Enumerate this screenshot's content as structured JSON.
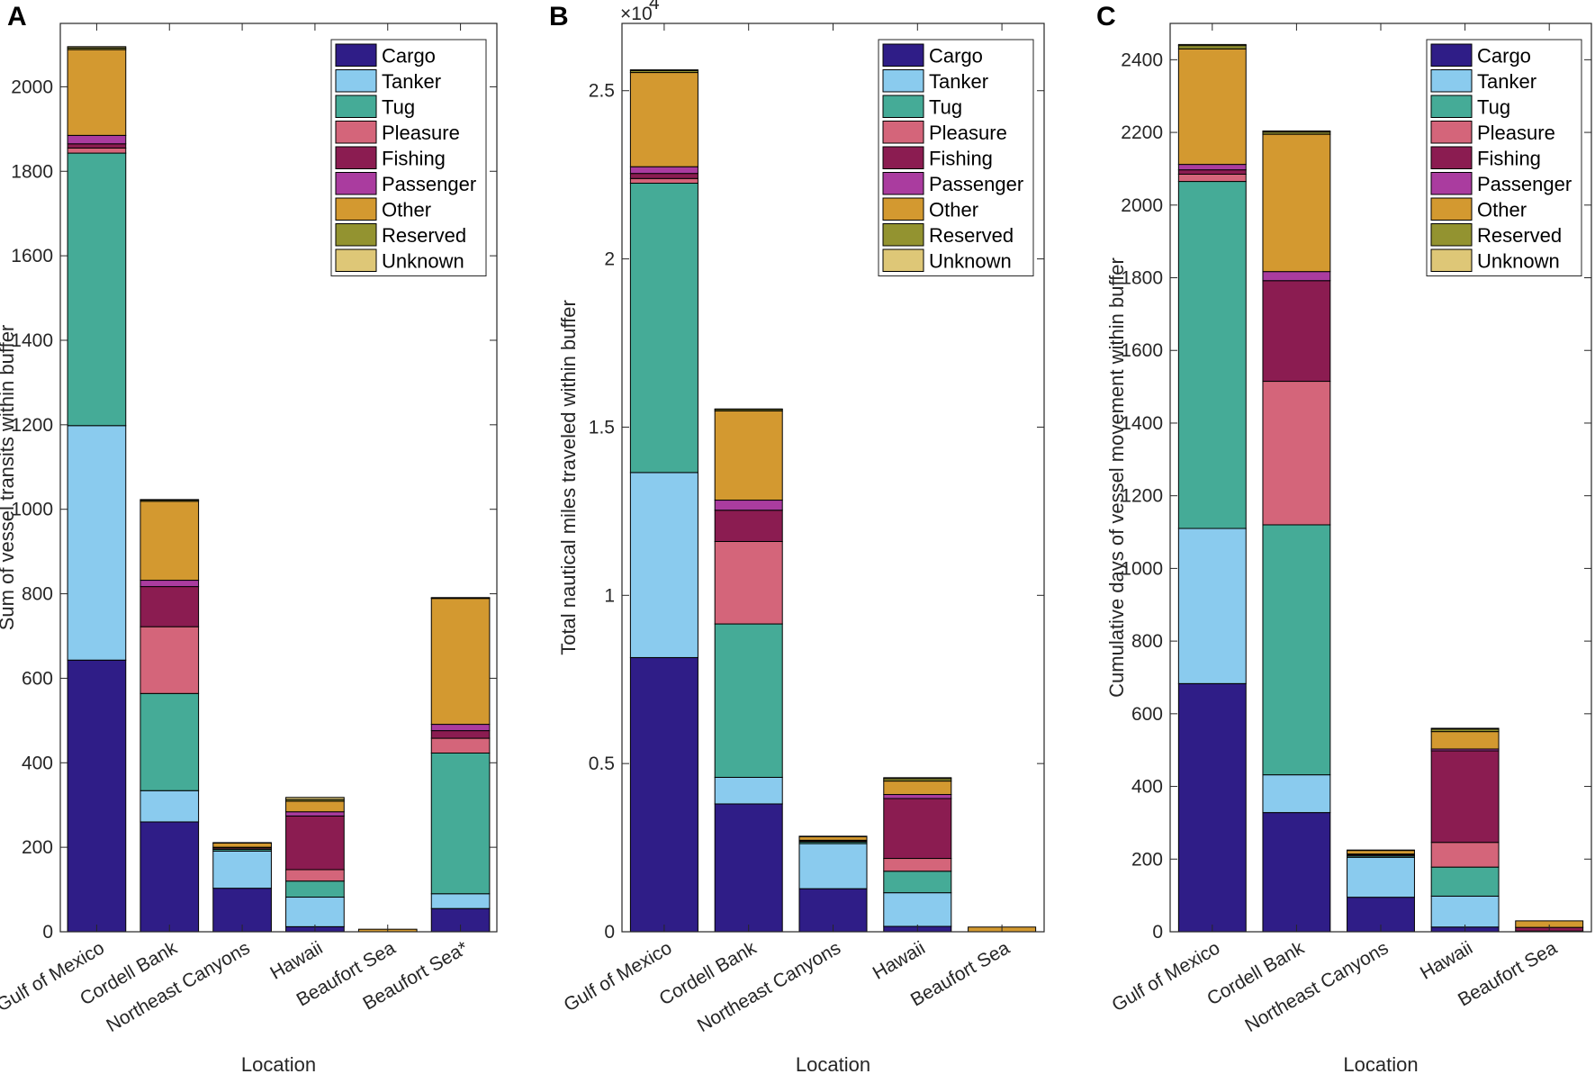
{
  "series_names": [
    "Cargo",
    "Tanker",
    "Tug",
    "Pleasure",
    "Fishing",
    "Passenger",
    "Other",
    "Reserved",
    "Unknown"
  ],
  "series_colors": [
    "#2f1d87",
    "#8acbee",
    "#45ab97",
    "#d4657a",
    "#8b1c51",
    "#aa3c9f",
    "#d39930",
    "#939330",
    "#dec777"
  ],
  "chart_data": [
    {
      "type": "bar",
      "stacked": true,
      "panel_label": "A",
      "title": "",
      "xlabel": "Location",
      "ylabel": "Sum of vessel transits within buffer",
      "ylim": [
        0,
        2150
      ],
      "yticks": [
        0,
        200,
        400,
        600,
        800,
        1000,
        1200,
        1400,
        1600,
        1800,
        2000
      ],
      "ytick_labels": [
        "0",
        "200",
        "400",
        "600",
        "800",
        "1000",
        "1200",
        "1400",
        "1600",
        "1800",
        "2000"
      ],
      "exponent_label": "",
      "categories": [
        "Gulf of Mexico",
        "Cordell Bank",
        "Northeast Canyons",
        "Hawaii",
        "Beaufort Sea",
        "Beaufort Sea*"
      ],
      "legend_position": "top-right",
      "series": [
        {
          "name": "Cargo",
          "values": [
            643,
            260,
            103,
            12,
            0,
            55
          ]
        },
        {
          "name": "Tanker",
          "values": [
            555,
            74,
            88,
            70,
            0,
            35
          ]
        },
        {
          "name": "Tug",
          "values": [
            645,
            230,
            4,
            38,
            0,
            333
          ]
        },
        {
          "name": "Pleasure",
          "values": [
            12,
            158,
            3,
            27,
            0,
            35
          ]
        },
        {
          "name": "Fishing",
          "values": [
            10,
            95,
            2,
            127,
            0,
            18
          ]
        },
        {
          "name": "Passenger",
          "values": [
            20,
            15,
            0,
            10,
            0,
            15
          ]
        },
        {
          "name": "Other",
          "values": [
            203,
            187,
            10,
            25,
            6,
            298
          ]
        },
        {
          "name": "Reserved",
          "values": [
            4,
            3,
            1,
            4,
            0,
            1
          ]
        },
        {
          "name": "Unknown",
          "values": [
            3,
            1,
            0,
            5,
            0,
            1
          ]
        }
      ]
    },
    {
      "type": "bar",
      "stacked": true,
      "panel_label": "B",
      "title": "",
      "xlabel": "Location",
      "ylabel": "Total nautical miles traveled within buffer",
      "ylim": [
        0,
        27000
      ],
      "yticks": [
        0,
        5000,
        10000,
        15000,
        20000,
        25000
      ],
      "ytick_labels": [
        "0",
        "0.5",
        "1",
        "1.5",
        "2",
        "2.5"
      ],
      "exponent_label": "×10",
      "exponent_power": "4",
      "categories": [
        "Gulf of Mexico",
        "Cordell Bank",
        "Northeast Canyons",
        "Hawaii",
        "Beaufort Sea"
      ],
      "legend_position": "top-right",
      "series": [
        {
          "name": "Cargo",
          "values": [
            8150,
            3800,
            1280,
            160,
            0
          ]
        },
        {
          "name": "Tanker",
          "values": [
            5500,
            790,
            1340,
            1000,
            0
          ]
        },
        {
          "name": "Tug",
          "values": [
            8600,
            4560,
            50,
            640,
            0
          ]
        },
        {
          "name": "Pleasure",
          "values": [
            140,
            2450,
            30,
            380,
            0
          ]
        },
        {
          "name": "Fishing",
          "values": [
            150,
            930,
            20,
            1780,
            0
          ]
        },
        {
          "name": "Passenger",
          "values": [
            200,
            300,
            0,
            120,
            0
          ]
        },
        {
          "name": "Other",
          "values": [
            2800,
            2650,
            110,
            400,
            140
          ]
        },
        {
          "name": "Reserved",
          "values": [
            60,
            50,
            10,
            70,
            0
          ]
        },
        {
          "name": "Unknown",
          "values": [
            20,
            10,
            0,
            30,
            0
          ]
        }
      ]
    },
    {
      "type": "bar",
      "stacked": true,
      "panel_label": "C",
      "title": "",
      "xlabel": "Location",
      "ylabel": "Cumulative days of vessel movement within buffer",
      "ylim": [
        0,
        2500
      ],
      "yticks": [
        0,
        200,
        400,
        600,
        800,
        1000,
        1200,
        1400,
        1600,
        1800,
        2000,
        2200,
        2400
      ],
      "ytick_labels": [
        "0",
        "200",
        "400",
        "600",
        "800",
        "1000",
        "1200",
        "1400",
        "1600",
        "1800",
        "2000",
        "2200",
        "2400"
      ],
      "exponent_label": "",
      "categories": [
        "Gulf of Mexico",
        "Cordell Bank",
        "Northeast Canyons",
        "Hawaii",
        "Beaufort Sea"
      ],
      "legend_position": "top-right",
      "series": [
        {
          "name": "Cargo",
          "values": [
            683,
            328,
            95,
            13,
            2
          ]
        },
        {
          "name": "Tanker",
          "values": [
            427,
            104,
            110,
            85,
            0
          ]
        },
        {
          "name": "Tug",
          "values": [
            955,
            688,
            4,
            80,
            0
          ]
        },
        {
          "name": "Pleasure",
          "values": [
            20,
            395,
            3,
            68,
            0
          ]
        },
        {
          "name": "Fishing",
          "values": [
            12,
            277,
            2,
            252,
            10
          ]
        },
        {
          "name": "Passenger",
          "values": [
            15,
            25,
            0,
            5,
            0
          ]
        },
        {
          "name": "Other",
          "values": [
            318,
            378,
            10,
            48,
            18
          ]
        },
        {
          "name": "Reserved",
          "values": [
            9,
            6,
            1,
            7,
            0
          ]
        },
        {
          "name": "Unknown",
          "values": [
            3,
            3,
            0,
            2,
            0
          ]
        }
      ]
    }
  ]
}
